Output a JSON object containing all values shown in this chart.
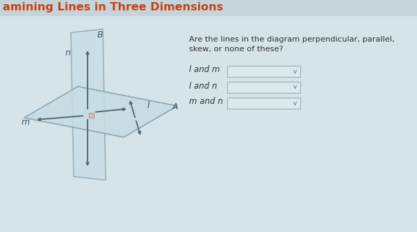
{
  "title": "amining Lines in Three Dimensions",
  "title_color": "#c84010",
  "bg_color": "#d4e4e8",
  "question_text_line1": "Are the lines in the diagram perpendicular, parallel,",
  "question_text_line2": "skew, or none of these?",
  "labels": [
    "l and m",
    "l and n",
    "m and n"
  ],
  "plane_face_color": "#c8dce4",
  "plane_edge_color": "#7a9aaa",
  "arrow_color": "#556677",
  "title_bar_color": "#c4d4da",
  "label_color": "#445566",
  "text_color": "#333333",
  "dropdown_fill": "#dde8ec",
  "dropdown_edge": "#9aacb4"
}
